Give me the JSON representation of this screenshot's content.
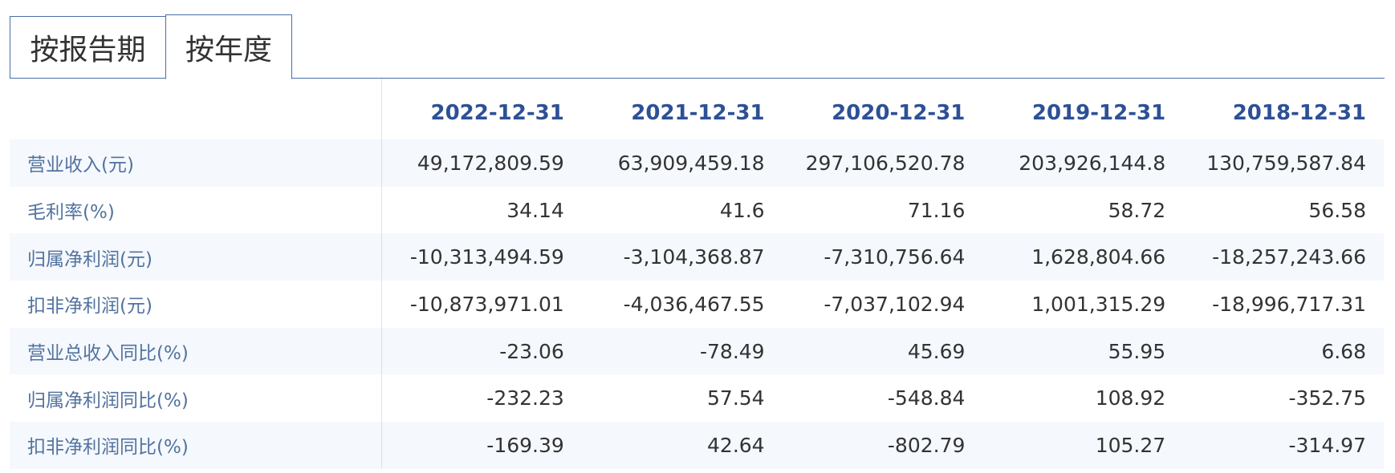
{
  "tabs": [
    {
      "label": "按报告期",
      "active": false
    },
    {
      "label": "按年度",
      "active": true
    }
  ],
  "table": {
    "columns": [
      "2022-12-31",
      "2021-12-31",
      "2020-12-31",
      "2019-12-31",
      "2018-12-31"
    ],
    "rows": [
      {
        "label": "营业收入(元)",
        "values": [
          "49,172,809.59",
          "63,909,459.18",
          "297,106,520.78",
          "203,926,144.8",
          "130,759,587.84"
        ]
      },
      {
        "label": "毛利率(%)",
        "values": [
          "34.14",
          "41.6",
          "71.16",
          "58.72",
          "56.58"
        ]
      },
      {
        "label": "归属净利润(元)",
        "values": [
          "-10,313,494.59",
          "-3,104,368.87",
          "-7,310,756.64",
          "1,628,804.66",
          "-18,257,243.66"
        ]
      },
      {
        "label": "扣非净利润(元)",
        "values": [
          "-10,873,971.01",
          "-4,036,467.55",
          "-7,037,102.94",
          "1,001,315.29",
          "-18,996,717.31"
        ]
      },
      {
        "label": "营业总收入同比(%)",
        "values": [
          "-23.06",
          "-78.49",
          "45.69",
          "55.95",
          "6.68"
        ]
      },
      {
        "label": "归属净利润同比(%)",
        "values": [
          "-232.23",
          "57.54",
          "-548.84",
          "108.92",
          "-352.75"
        ]
      },
      {
        "label": "扣非净利润同比(%)",
        "values": [
          "-169.39",
          "42.64",
          "-802.79",
          "105.27",
          "-314.97"
        ]
      }
    ]
  },
  "colors": {
    "accent": "#2d5096",
    "label": "#52739e",
    "row_alt": "#f5f8fd",
    "tab_border": "#4a6ea9"
  }
}
